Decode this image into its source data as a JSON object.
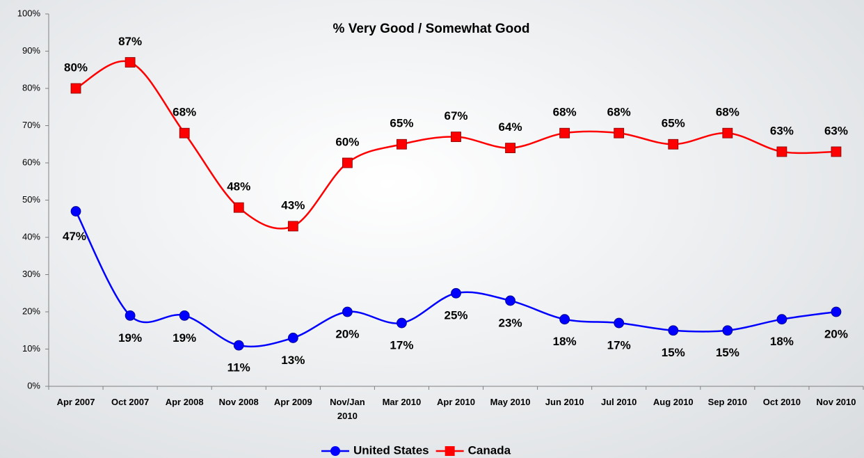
{
  "chart_data": {
    "type": "line",
    "title": "% Very Good / Somewhat Good",
    "categories": [
      "Apr 2007",
      "Oct 2007",
      "Apr 2008",
      "Nov 2008",
      "Apr 2009",
      "Nov/Jan 2010",
      "Mar 2010",
      "Apr 2010",
      "May 2010",
      "Jun 2010",
      "Jul 2010",
      "Aug 2010",
      "Sep 2010",
      "Oct 2010",
      "Nov 2010"
    ],
    "series": [
      {
        "name": "United States",
        "color": "#0000ff",
        "marker": "circle",
        "values": [
          47,
          19,
          19,
          11,
          13,
          20,
          17,
          25,
          23,
          18,
          17,
          15,
          15,
          18,
          20
        ],
        "value_labels": [
          "47%",
          "19%",
          "19%",
          "11%",
          "13%",
          "20%",
          "17%",
          "25%",
          "23%",
          "18%",
          "17%",
          "15%",
          "15%",
          "18%",
          "20%"
        ]
      },
      {
        "name": "Canada",
        "color": "#ff0000",
        "marker": "square",
        "values": [
          80,
          87,
          68,
          48,
          43,
          60,
          65,
          67,
          64,
          68,
          68,
          65,
          68,
          63,
          63
        ],
        "value_labels": [
          "80%",
          "87%",
          "68%",
          "48%",
          "43%",
          "60%",
          "65%",
          "67%",
          "64%",
          "68%",
          "68%",
          "65%",
          "68%",
          "63%",
          "63%"
        ]
      }
    ],
    "ylim": [
      0,
      100
    ],
    "yticks": [
      {
        "value": 0,
        "label": "0%"
      },
      {
        "value": 10,
        "label": "10%"
      },
      {
        "value": 20,
        "label": "20%"
      },
      {
        "value": 30,
        "label": "30%"
      },
      {
        "value": 40,
        "label": "40%"
      },
      {
        "value": 50,
        "label": "50%"
      },
      {
        "value": 60,
        "label": "60%"
      },
      {
        "value": 70,
        "label": "70%"
      },
      {
        "value": 80,
        "label": "80%"
      },
      {
        "value": 90,
        "label": "90%"
      },
      {
        "value": 100,
        "label": "100%"
      }
    ],
    "legend": "bottom"
  }
}
